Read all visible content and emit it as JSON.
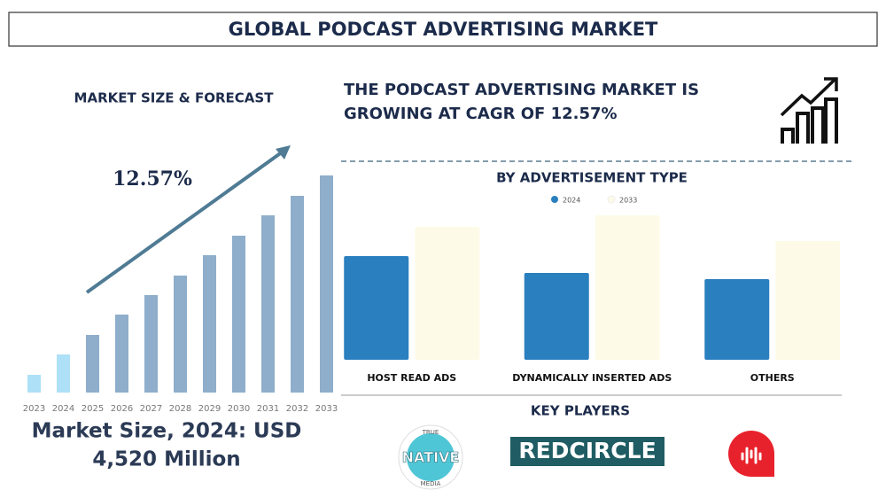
{
  "title": "GLOBAL PODCAST ADVERTISING MARKET",
  "headline": [
    "THE PODCAST ADVERTISING MARKET IS",
    "GROWING AT CAGR OF 12.57%"
  ],
  "market_size": [
    "Market Size, 2024: USD",
    "4,520 Million"
  ],
  "key_players": {
    "title": "KEY PLAYERS",
    "logos": [
      [
        "TRUE",
        "NATIVE",
        "MEDIA"
      ],
      [
        "REDCIRCLE"
      ]
    ]
  },
  "chart_data": [
    {
      "type": "bar",
      "title": "MARKET SIZE & FORECAST",
      "annotation": "12.57%",
      "categories": [
        "2023",
        "2024",
        "2025",
        "2026",
        "2027",
        "2028",
        "2029",
        "2030",
        "2031",
        "2032",
        "2033"
      ],
      "values": [
        20,
        43,
        65,
        88,
        110,
        132,
        155,
        177,
        200,
        222,
        245
      ],
      "colors": [
        "#aee0f7",
        "#aee0f7",
        "#8eaecb",
        "#8eaecb",
        "#8eaecb",
        "#8eaecb",
        "#8eaecb",
        "#8eaecb",
        "#8eaecb",
        "#8eaecb",
        "#8eaecb"
      ]
    },
    {
      "type": "bar",
      "title": "BY ADVERTISEMENT TYPE",
      "categories": [
        "HOST READ ADS",
        "DYNAMICALLY INSERTED ADS",
        "OTHERS"
      ],
      "series": [
        {
          "name": "2024",
          "color": "#2a7fbf",
          "values": [
            117,
            98,
            91
          ]
        },
        {
          "name": "2033",
          "color": "#fdfbe8",
          "values": [
            150,
            163,
            134
          ]
        }
      ]
    }
  ]
}
